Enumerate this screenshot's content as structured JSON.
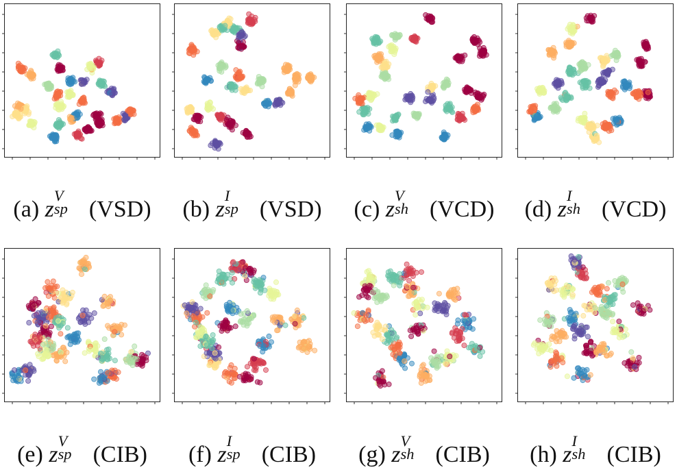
{
  "palette": [
    "#9e0142",
    "#d53e4f",
    "#f46d43",
    "#fdae61",
    "#fee08b",
    "#e6f598",
    "#abdda4",
    "#66c2a5",
    "#3288bd",
    "#5e4fa2"
  ],
  "chart_data": [
    {
      "id": "a",
      "type": "scatter",
      "caption": {
        "label": "(a)",
        "var": "z",
        "sup": "V",
        "sub": "sp",
        "method": "(VSD)"
      },
      "spread": 0.5,
      "noise": 0.01,
      "clusters": [
        {
          "x": 3.1,
          "y": 1.05,
          "c": 8
        },
        {
          "x": 0.7,
          "y": 3.2,
          "c": 3
        },
        {
          "x": 1.1,
          "y": 2.9,
          "c": 4
        },
        {
          "x": 1.5,
          "y": 2.0,
          "c": 5
        },
        {
          "x": 3.5,
          "y": 3.2,
          "c": 5
        },
        {
          "x": 3.4,
          "y": 1.9,
          "c": 7
        },
        {
          "x": 3.3,
          "y": 4.0,
          "c": 2
        },
        {
          "x": 4.3,
          "y": 2.3,
          "c": 3
        },
        {
          "x": 4.7,
          "y": 1.2,
          "c": 1
        },
        {
          "x": 5.4,
          "y": 1.6,
          "c": 0
        },
        {
          "x": 5.0,
          "y": 3.6,
          "c": 2
        },
        {
          "x": 6.0,
          "y": 2.5,
          "c": 0
        },
        {
          "x": 7.4,
          "y": 2.2,
          "c": 2
        },
        {
          "x": 8.0,
          "y": 2.5,
          "c": 9
        },
        {
          "x": 8.3,
          "y": 2.8,
          "c": 2
        },
        {
          "x": 5.1,
          "y": 4.9,
          "c": 9
        },
        {
          "x": 3.5,
          "y": 5.8,
          "c": 0
        },
        {
          "x": 3.2,
          "y": 6.8,
          "c": 7
        },
        {
          "x": 6.1,
          "y": 6.2,
          "c": 1
        },
        {
          "x": 1.5,
          "y": 5.4,
          "c": 3
        },
        {
          "x": 0.8,
          "y": 5.8,
          "c": 2
        },
        {
          "x": 4.1,
          "y": 4.0,
          "c": 5
        },
        {
          "x": 4.2,
          "y": 5.0,
          "c": 8
        },
        {
          "x": 7.0,
          "y": 4.2,
          "c": 9
        },
        {
          "x": 5.6,
          "y": 5.9,
          "c": 5
        },
        {
          "x": 0.5,
          "y": 2.6,
          "c": 4
        },
        {
          "x": 2.7,
          "y": 4.6,
          "c": 6
        },
        {
          "x": 6.3,
          "y": 4.8,
          "c": 7
        },
        {
          "x": 6.2,
          "y": 2.0,
          "c": 0
        },
        {
          "x": 4.6,
          "y": 2.6,
          "c": 8
        }
      ]
    },
    {
      "id": "b",
      "type": "scatter",
      "caption": {
        "label": "(b)",
        "var": "z",
        "sup": "I",
        "sub": "sp",
        "method": "(VSD)"
      },
      "spread": 0.55,
      "noise": 0.02,
      "clusters": [
        {
          "x": 2.5,
          "y": 0.6,
          "c": 9
        },
        {
          "x": 0.9,
          "y": 1.4,
          "c": 2
        },
        {
          "x": 1.2,
          "y": 2.4,
          "c": 0
        },
        {
          "x": 2.8,
          "y": 2.5,
          "c": 1
        },
        {
          "x": 3.5,
          "y": 2.0,
          "c": 0
        },
        {
          "x": 4.6,
          "y": 1.3,
          "c": 0
        },
        {
          "x": 2.0,
          "y": 3.2,
          "c": 5
        },
        {
          "x": 0.7,
          "y": 3.0,
          "c": 4
        },
        {
          "x": 1.9,
          "y": 5.0,
          "c": 8
        },
        {
          "x": 3.6,
          "y": 4.6,
          "c": 7
        },
        {
          "x": 4.1,
          "y": 5.3,
          "c": 2
        },
        {
          "x": 4.5,
          "y": 4.3,
          "c": 4
        },
        {
          "x": 5.6,
          "y": 4.9,
          "c": 6
        },
        {
          "x": 6.0,
          "y": 3.4,
          "c": 8
        },
        {
          "x": 6.8,
          "y": 3.5,
          "c": 9
        },
        {
          "x": 7.6,
          "y": 4.2,
          "c": 3
        },
        {
          "x": 8.0,
          "y": 5.2,
          "c": 3
        },
        {
          "x": 9.0,
          "y": 5.2,
          "c": 3
        },
        {
          "x": 7.4,
          "y": 5.8,
          "c": 3
        },
        {
          "x": 4.2,
          "y": 7.4,
          "c": 0
        },
        {
          "x": 3.8,
          "y": 8.6,
          "c": 7
        },
        {
          "x": 4.3,
          "y": 8.2,
          "c": 9
        },
        {
          "x": 3.0,
          "y": 8.7,
          "c": 7
        },
        {
          "x": 2.4,
          "y": 8.3,
          "c": 4
        },
        {
          "x": 2.9,
          "y": 6.0,
          "c": 6
        },
        {
          "x": 0.9,
          "y": 7.2,
          "c": 2
        },
        {
          "x": 4.9,
          "y": 9.2,
          "c": 1
        },
        {
          "x": 3.3,
          "y": 9.0,
          "c": 4
        }
      ]
    },
    {
      "id": "c",
      "type": "scatter",
      "caption": {
        "label": "(c)",
        "var": "z",
        "sup": "V",
        "sub": "sh",
        "method": "(VCD)"
      },
      "spread": 0.55,
      "noise": 0.01,
      "clusters": [
        {
          "x": 0.9,
          "y": 2.9,
          "c": 7
        },
        {
          "x": 1.1,
          "y": 1.7,
          "c": 8
        },
        {
          "x": 0.6,
          "y": 3.6,
          "c": 2
        },
        {
          "x": 2.0,
          "y": 1.7,
          "c": 5
        },
        {
          "x": 3.2,
          "y": 1.3,
          "c": 8
        },
        {
          "x": 3.0,
          "y": 2.4,
          "c": 7
        },
        {
          "x": 4.5,
          "y": 2.6,
          "c": 6
        },
        {
          "x": 4.0,
          "y": 3.8,
          "c": 9
        },
        {
          "x": 5.4,
          "y": 3.7,
          "c": 9
        },
        {
          "x": 6.7,
          "y": 3.0,
          "c": 7
        },
        {
          "x": 6.4,
          "y": 1.1,
          "c": 8
        },
        {
          "x": 7.5,
          "y": 2.4,
          "c": 1
        },
        {
          "x": 8.5,
          "y": 3.0,
          "c": 2
        },
        {
          "x": 8.8,
          "y": 3.9,
          "c": 0
        },
        {
          "x": 8.0,
          "y": 4.3,
          "c": 0
        },
        {
          "x": 9.0,
          "y": 7.0,
          "c": 0
        },
        {
          "x": 8.5,
          "y": 7.8,
          "c": 0
        },
        {
          "x": 7.4,
          "y": 6.6,
          "c": 0
        },
        {
          "x": 5.4,
          "y": 9.3,
          "c": 0
        },
        {
          "x": 4.3,
          "y": 7.9,
          "c": 1
        },
        {
          "x": 3.1,
          "y": 8.1,
          "c": 6
        },
        {
          "x": 2.8,
          "y": 7.2,
          "c": 5
        },
        {
          "x": 2.3,
          "y": 5.3,
          "c": 6
        },
        {
          "x": 1.8,
          "y": 6.6,
          "c": 3
        },
        {
          "x": 2.3,
          "y": 6.0,
          "c": 4
        },
        {
          "x": 5.5,
          "y": 4.5,
          "c": 4
        },
        {
          "x": 6.5,
          "y": 4.8,
          "c": 6
        },
        {
          "x": 1.7,
          "y": 7.8,
          "c": 7
        },
        {
          "x": 1.3,
          "y": 3.9,
          "c": 5
        }
      ]
    },
    {
      "id": "d",
      "type": "scatter",
      "caption": {
        "label": "(d)",
        "var": "z",
        "sup": "I",
        "sub": "sh",
        "method": "(VCD)"
      },
      "spread": 0.6,
      "noise": 0.02,
      "clusters": [
        {
          "x": 0.9,
          "y": 2.5,
          "c": 8
        },
        {
          "x": 0.7,
          "y": 3.0,
          "c": 2
        },
        {
          "x": 1.2,
          "y": 4.3,
          "c": 5
        },
        {
          "x": 2.2,
          "y": 3.1,
          "c": 6
        },
        {
          "x": 2.0,
          "y": 7.0,
          "c": 3
        },
        {
          "x": 3.2,
          "y": 7.5,
          "c": 3
        },
        {
          "x": 3.4,
          "y": 8.6,
          "c": 5
        },
        {
          "x": 3.0,
          "y": 3.9,
          "c": 7
        },
        {
          "x": 2.4,
          "y": 4.8,
          "c": 9
        },
        {
          "x": 4.3,
          "y": 4.7,
          "c": 7
        },
        {
          "x": 5.4,
          "y": 4.9,
          "c": 9
        },
        {
          "x": 6.1,
          "y": 4.1,
          "c": 2
        },
        {
          "x": 5.8,
          "y": 5.6,
          "c": 9
        },
        {
          "x": 4.2,
          "y": 6.0,
          "c": 6
        },
        {
          "x": 5.6,
          "y": 6.4,
          "c": 4
        },
        {
          "x": 7.1,
          "y": 4.7,
          "c": 8
        },
        {
          "x": 7.9,
          "y": 4.0,
          "c": 2
        },
        {
          "x": 8.6,
          "y": 4.0,
          "c": 0
        },
        {
          "x": 8.1,
          "y": 6.2,
          "c": 0
        },
        {
          "x": 8.5,
          "y": 7.5,
          "c": 0
        },
        {
          "x": 4.7,
          "y": 9.3,
          "c": 0
        },
        {
          "x": 4.7,
          "y": 1.8,
          "c": 4
        },
        {
          "x": 5.0,
          "y": 1.0,
          "c": 4
        },
        {
          "x": 5.8,
          "y": 1.8,
          "c": 2
        },
        {
          "x": 6.5,
          "y": 2.2,
          "c": 8
        },
        {
          "x": 4.1,
          "y": 2.2,
          "c": 5
        },
        {
          "x": 3.3,
          "y": 5.7,
          "c": 7
        },
        {
          "x": 6.4,
          "y": 6.8,
          "c": 6
        }
      ]
    },
    {
      "id": "e",
      "type": "scatter",
      "caption": {
        "label": "(e)",
        "var": "z",
        "sup": "V",
        "sub": "sp",
        "method": "(CIB)"
      },
      "spread": 1.0,
      "noise": 0.15,
      "clusters": [
        {
          "x": 1.2,
          "y": 1.8,
          "c": 9
        },
        {
          "x": 0.6,
          "y": 1.5,
          "c": 8
        },
        {
          "x": 2.4,
          "y": 3.0,
          "c": 5
        },
        {
          "x": 2.7,
          "y": 3.6,
          "c": 6
        },
        {
          "x": 1.9,
          "y": 4.0,
          "c": 1
        },
        {
          "x": 2.4,
          "y": 4.6,
          "c": 0
        },
        {
          "x": 2.1,
          "y": 5.5,
          "c": 9
        },
        {
          "x": 2.9,
          "y": 5.8,
          "c": 2
        },
        {
          "x": 1.6,
          "y": 6.4,
          "c": 0
        },
        {
          "x": 3.5,
          "y": 5.2,
          "c": 7
        },
        {
          "x": 4.4,
          "y": 4.1,
          "c": 8
        },
        {
          "x": 5.2,
          "y": 5.6,
          "c": 9
        },
        {
          "x": 3.8,
          "y": 6.9,
          "c": 4
        },
        {
          "x": 2.8,
          "y": 7.5,
          "c": 2
        },
        {
          "x": 5.2,
          "y": 9.2,
          "c": 3
        },
        {
          "x": 6.7,
          "y": 6.6,
          "c": 3
        },
        {
          "x": 7.3,
          "y": 4.6,
          "c": 3
        },
        {
          "x": 6.6,
          "y": 2.8,
          "c": 7
        },
        {
          "x": 8.4,
          "y": 2.7,
          "c": 6
        },
        {
          "x": 9.0,
          "y": 2.5,
          "c": 0
        },
        {
          "x": 6.4,
          "y": 1.3,
          "c": 8
        },
        {
          "x": 7.1,
          "y": 1.5,
          "c": 2
        },
        {
          "x": 5.8,
          "y": 3.5,
          "c": 5
        },
        {
          "x": 3.4,
          "y": 3.0,
          "c": 3
        }
      ]
    },
    {
      "id": "f",
      "type": "scatter",
      "caption": {
        "label": "(f)",
        "var": "z",
        "sup": "I",
        "sub": "sp",
        "method": "(CIB)"
      },
      "spread": 1.0,
      "noise": 0.15,
      "clusters": [
        {
          "x": 0.8,
          "y": 6.2,
          "c": 9
        },
        {
          "x": 1.1,
          "y": 5.4,
          "c": 2
        },
        {
          "x": 2.0,
          "y": 7.2,
          "c": 6
        },
        {
          "x": 3.0,
          "y": 8.3,
          "c": 7
        },
        {
          "x": 3.9,
          "y": 9.0,
          "c": 1
        },
        {
          "x": 4.7,
          "y": 8.7,
          "c": 0
        },
        {
          "x": 5.4,
          "y": 7.8,
          "c": 7
        },
        {
          "x": 6.5,
          "y": 7.2,
          "c": 5
        },
        {
          "x": 6.8,
          "y": 5.2,
          "c": 3
        },
        {
          "x": 8.1,
          "y": 5.4,
          "c": 3
        },
        {
          "x": 8.7,
          "y": 3.6,
          "c": 3
        },
        {
          "x": 5.8,
          "y": 3.7,
          "c": 8
        },
        {
          "x": 5.3,
          "y": 2.4,
          "c": 1
        },
        {
          "x": 4.7,
          "y": 1.3,
          "c": 0
        },
        {
          "x": 3.5,
          "y": 1.6,
          "c": 2
        },
        {
          "x": 2.4,
          "y": 3.1,
          "c": 9
        },
        {
          "x": 1.9,
          "y": 3.8,
          "c": 7
        },
        {
          "x": 3.1,
          "y": 4.9,
          "c": 0
        },
        {
          "x": 3.6,
          "y": 6.1,
          "c": 8
        },
        {
          "x": 4.6,
          "y": 5.4,
          "c": 6
        },
        {
          "x": 2.4,
          "y": 2.3,
          "c": 4
        },
        {
          "x": 1.5,
          "y": 4.4,
          "c": 5
        }
      ]
    },
    {
      "id": "g",
      "type": "scatter",
      "caption": {
        "label": "(g)",
        "var": "z",
        "sup": "V",
        "sub": "sh",
        "method": "(CIB)"
      },
      "spread": 1.0,
      "noise": 0.15,
      "clusters": [
        {
          "x": 1.1,
          "y": 7.4,
          "c": 0
        },
        {
          "x": 0.8,
          "y": 5.6,
          "c": 2
        },
        {
          "x": 1.9,
          "y": 4.6,
          "c": 4
        },
        {
          "x": 2.0,
          "y": 7.0,
          "c": 6
        },
        {
          "x": 2.9,
          "y": 8.3,
          "c": 7
        },
        {
          "x": 3.9,
          "y": 8.6,
          "c": 1
        },
        {
          "x": 4.2,
          "y": 7.4,
          "c": 3
        },
        {
          "x": 4.6,
          "y": 6.4,
          "c": 5
        },
        {
          "x": 6.2,
          "y": 6.2,
          "c": 9
        },
        {
          "x": 6.9,
          "y": 7.2,
          "c": 3
        },
        {
          "x": 7.9,
          "y": 5.2,
          "c": 8
        },
        {
          "x": 7.3,
          "y": 4.3,
          "c": 1
        },
        {
          "x": 8.6,
          "y": 3.4,
          "c": 7
        },
        {
          "x": 6.7,
          "y": 2.7,
          "c": 5
        },
        {
          "x": 5.7,
          "y": 2.4,
          "c": 6
        },
        {
          "x": 5.0,
          "y": 1.5,
          "c": 3
        },
        {
          "x": 3.6,
          "y": 2.6,
          "c": 8
        },
        {
          "x": 3.2,
          "y": 3.3,
          "c": 2
        },
        {
          "x": 2.1,
          "y": 1.2,
          "c": 0
        },
        {
          "x": 2.6,
          "y": 4.2,
          "c": 7
        },
        {
          "x": 4.5,
          "y": 4.7,
          "c": 0
        },
        {
          "x": 1.2,
          "y": 8.2,
          "c": 5
        }
      ]
    },
    {
      "id": "h",
      "type": "scatter",
      "caption": {
        "label": "(h)",
        "var": "z",
        "sup": "I",
        "sub": "sh",
        "method": "(CIB)"
      },
      "spread": 1.0,
      "noise": 0.15,
      "clusters": [
        {
          "x": 8.2,
          "y": 6.1,
          "c": 0
        },
        {
          "x": 7.6,
          "y": 2.3,
          "c": 0
        },
        {
          "x": 4.6,
          "y": 3.3,
          "c": 0
        },
        {
          "x": 3.6,
          "y": 9.4,
          "c": 9
        },
        {
          "x": 4.0,
          "y": 8.6,
          "c": 1
        },
        {
          "x": 3.4,
          "y": 5.5,
          "c": 8
        },
        {
          "x": 3.9,
          "y": 4.6,
          "c": 9
        },
        {
          "x": 2.5,
          "y": 4.3,
          "c": 3
        },
        {
          "x": 1.8,
          "y": 5.3,
          "c": 6
        },
        {
          "x": 1.3,
          "y": 3.4,
          "c": 5
        },
        {
          "x": 2.0,
          "y": 7.8,
          "c": 4
        },
        {
          "x": 3.0,
          "y": 7.4,
          "c": 5
        },
        {
          "x": 5.7,
          "y": 5.9,
          "c": 6
        },
        {
          "x": 6.5,
          "y": 4.6,
          "c": 5
        },
        {
          "x": 5.2,
          "y": 7.4,
          "c": 2
        },
        {
          "x": 6.8,
          "y": 7.9,
          "c": 6
        },
        {
          "x": 4.1,
          "y": 1.5,
          "c": 8
        },
        {
          "x": 2.3,
          "y": 2.6,
          "c": 2
        },
        {
          "x": 5.5,
          "y": 3.2,
          "c": 3
        },
        {
          "x": 6.0,
          "y": 6.8,
          "c": 7
        },
        {
          "x": 4.7,
          "y": 6.2,
          "c": 4
        }
      ]
    }
  ]
}
